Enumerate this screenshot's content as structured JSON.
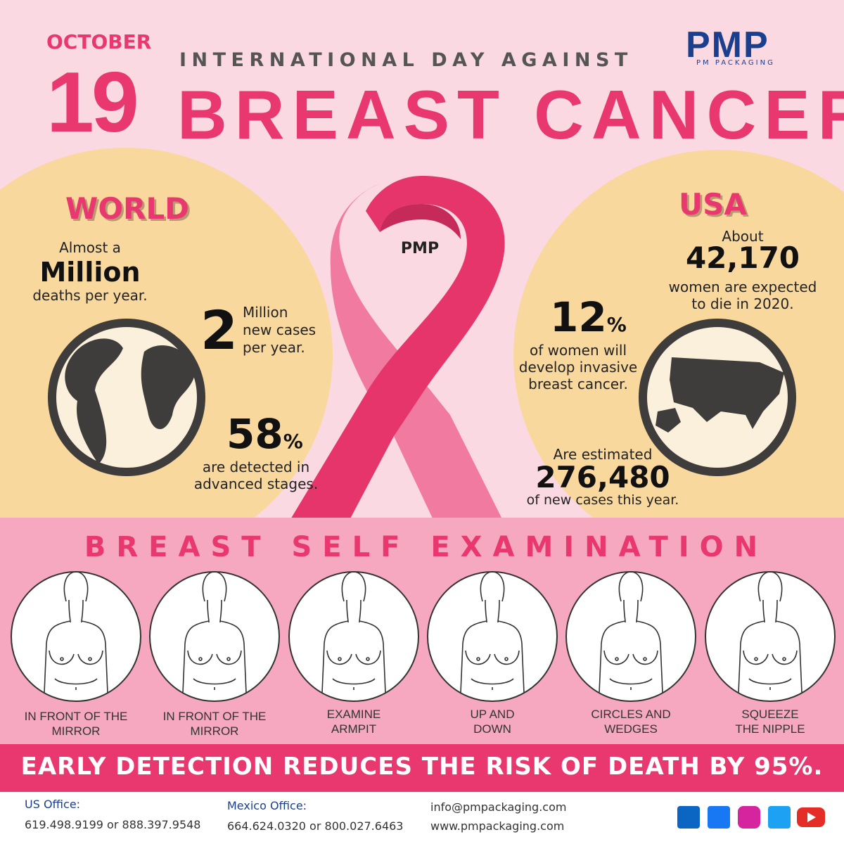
{
  "header": {
    "month": "OCTOBER",
    "day": "19",
    "subtitle": "INTERNATIONAL DAY AGAINST",
    "title": "BREAST CANCER",
    "logo": "PMP",
    "logo_caption": "PM PACKAGING"
  },
  "ribbon_logo": "PMP",
  "world": {
    "heading": "WORLD",
    "deaths": {
      "pre": "Almost a",
      "big": "Million",
      "post": "deaths per year."
    },
    "cases": {
      "big": "2",
      "lines": [
        "Million",
        "new cases",
        "per year."
      ]
    },
    "advanced": {
      "big": "58",
      "unit": "%",
      "lines": [
        "are detected in",
        "advanced stages."
      ]
    }
  },
  "usa": {
    "heading": "USA",
    "deaths": {
      "pre": "About",
      "big": "42,170",
      "lines": [
        "women are expected",
        "to die in 2020."
      ]
    },
    "invasive": {
      "big": "12",
      "unit": "%",
      "lines": [
        "of women will",
        "develop invasive",
        "breast cancer."
      ]
    },
    "cases": {
      "pre": "Are estimated",
      "big": "276,480",
      "post": "of new cases this year."
    }
  },
  "exam": {
    "title": "BREAST SELF EXAMINATION",
    "steps": [
      [
        "IN FRONT OF THE",
        "MIRROR"
      ],
      [
        "IN FRONT OF THE",
        "MIRROR"
      ],
      [
        "EXAMINE",
        "ARMPIT"
      ],
      [
        "UP AND",
        "DOWN"
      ],
      [
        "CIRCLES AND",
        "WEDGES"
      ],
      [
        "SQUEEZE",
        "THE NIPPLE"
      ]
    ]
  },
  "banner": "EARLY DETECTION REDUCES THE RISK OF DEATH BY 95%.",
  "footer": {
    "us": {
      "label": "US Office:",
      "phones": "619.498.9199 or 888.397.9548"
    },
    "mexico": {
      "label": "Mexico Office:",
      "phones": "664.624.0320 or 800.027.6463"
    },
    "email": "info@pmpackaging.com",
    "web": "www.pmpackaging.com"
  }
}
